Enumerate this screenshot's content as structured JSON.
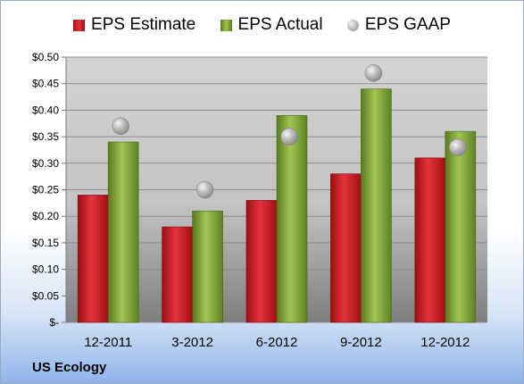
{
  "chart_data": {
    "type": "bar",
    "categories": [
      "12-2011",
      "3-2012",
      "6-2012",
      "9-2012",
      "12-2012"
    ],
    "series": [
      {
        "name": "EPS Estimate",
        "values": [
          0.24,
          0.18,
          0.23,
          0.28,
          0.31
        ],
        "color": "#c9191f"
      },
      {
        "name": "EPS Actual",
        "values": [
          0.34,
          0.21,
          0.39,
          0.44,
          0.36
        ],
        "color": "#83a93a"
      },
      {
        "name": "EPS GAAP",
        "values": [
          0.37,
          0.25,
          0.35,
          0.47,
          0.33
        ],
        "color": "#b0b0b0",
        "marker": "circle"
      }
    ],
    "y_ticks": [
      "$-",
      "$0.05",
      "$0.10",
      "$0.15",
      "$0.20",
      "$0.25",
      "$0.30",
      "$0.35",
      "$0.40",
      "$0.45",
      "$0.50"
    ],
    "ylim": [
      0,
      0.5
    ],
    "grid": true,
    "legend_position": "top"
  },
  "footer": {
    "company": "US Ecology"
  }
}
